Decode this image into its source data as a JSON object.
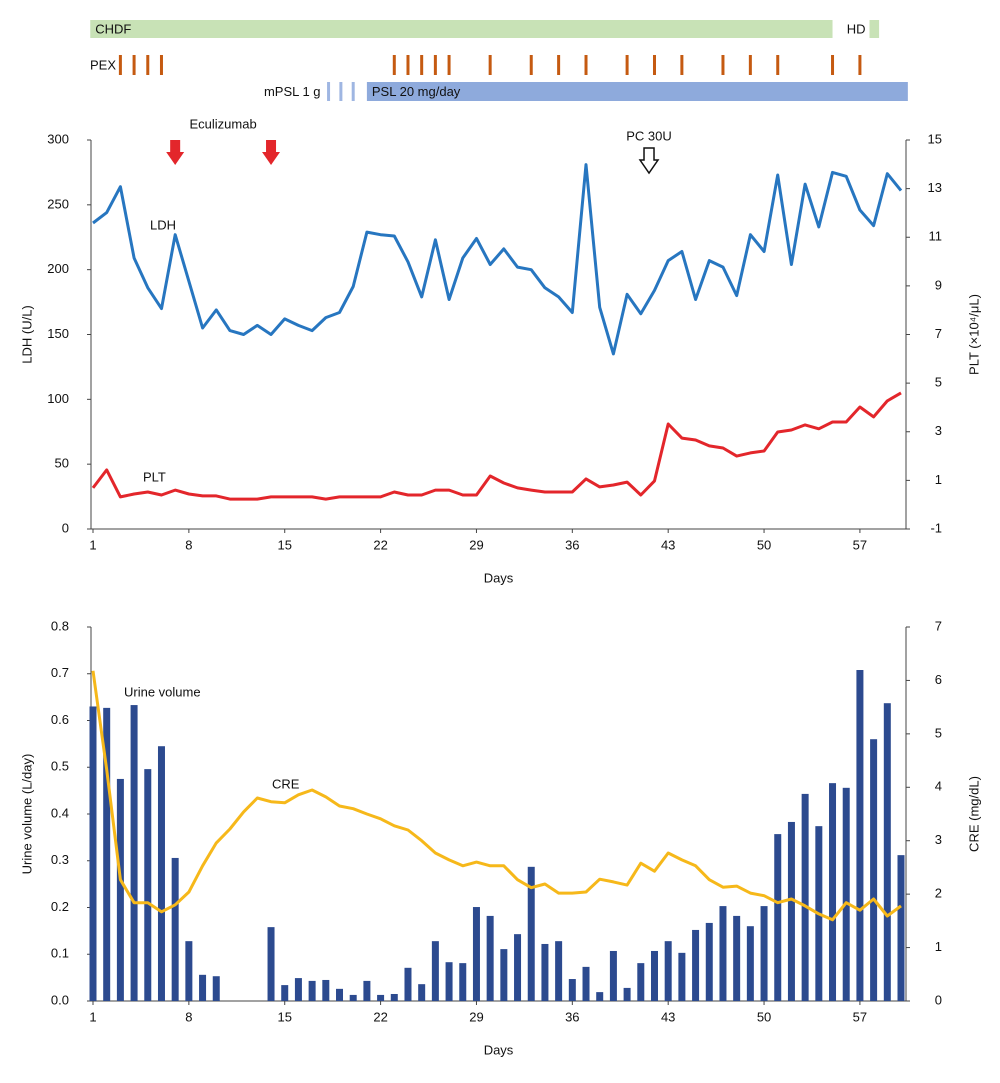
{
  "chart_data": [
    {
      "type": "timeline",
      "rows": [
        {
          "name": "CHDF",
          "spans": [
            [
              0.8,
              55
            ]
          ],
          "color": "#c8e2b6"
        },
        {
          "name": "HD",
          "spans": [
            [
              57.7,
              58.4
            ]
          ],
          "color": "#c8e2b6"
        },
        {
          "name": "PEX",
          "days": [
            3,
            4,
            5,
            6,
            23,
            24,
            25,
            26,
            27,
            30,
            33,
            35,
            37,
            40,
            42,
            44,
            47,
            49,
            51,
            55,
            57
          ],
          "color": "#c55a11"
        },
        {
          "name": "mPSL 1 g",
          "days": [
            18.2,
            19.1,
            20
          ],
          "color": "#9fb6e2"
        },
        {
          "name": "PSL 20 mg/day",
          "spans": [
            [
              21,
              60.5
            ]
          ],
          "color": "#8eaadc"
        }
      ]
    },
    {
      "type": "line",
      "xlabel": "Days",
      "ylabel": "LDH (U/L)",
      "y2label": "PLT (×10⁴/μL)",
      "x": [
        1,
        2,
        3,
        4,
        5,
        6,
        7,
        8,
        9,
        10,
        11,
        12,
        13,
        14,
        15,
        16,
        17,
        18,
        19,
        20,
        21,
        22,
        23,
        24,
        25,
        26,
        27,
        28,
        29,
        30,
        31,
        32,
        33,
        34,
        35,
        36,
        37,
        38,
        39,
        40,
        41,
        42,
        43,
        44,
        45,
        46,
        47,
        48,
        49,
        50,
        51,
        52,
        53,
        54,
        55,
        56,
        57,
        58,
        59,
        60
      ],
      "xlim": [
        1,
        60
      ],
      "xticks": [
        1,
        8,
        15,
        22,
        29,
        36,
        43,
        50,
        57
      ],
      "ylim": [
        0,
        300
      ],
      "yticks": [
        0,
        50,
        100,
        150,
        200,
        250,
        300
      ],
      "y2lim": [
        -1,
        15
      ],
      "y2ticks": [
        -1,
        1,
        3,
        5,
        7,
        9,
        11,
        13,
        15
      ],
      "series": [
        {
          "name": "LDH",
          "color": "#2776c0",
          "values": [
            236,
            244,
            264,
            209,
            186,
            170,
            227,
            191,
            155,
            169,
            153,
            150,
            157,
            150,
            162,
            157,
            153,
            163,
            167,
            187,
            229,
            227,
            226,
            206,
            179,
            223,
            177,
            209,
            224,
            204,
            216,
            202,
            200,
            186,
            179,
            167,
            281,
            171,
            135,
            181,
            166,
            184,
            207,
            214,
            177,
            207,
            202,
            180,
            227,
            214,
            273,
            204,
            266,
            233,
            275,
            272,
            246,
            234,
            274,
            261
          ]
        },
        {
          "name": "PLT",
          "color": "#e3262b",
          "axis": "y2",
          "values": [
            0.69,
            1.43,
            0.32,
            0.44,
            0.52,
            0.4,
            0.6,
            0.44,
            0.36,
            0.36,
            0.23,
            0.23,
            0.23,
            0.32,
            0.32,
            0.32,
            0.32,
            0.23,
            0.32,
            0.32,
            0.32,
            0.32,
            0.52,
            0.4,
            0.4,
            0.6,
            0.6,
            0.4,
            0.4,
            1.18,
            0.89,
            0.69,
            0.6,
            0.52,
            0.52,
            0.52,
            1.06,
            0.73,
            0.81,
            0.93,
            0.4,
            0.98,
            3.32,
            2.74,
            2.66,
            2.42,
            2.33,
            2.0,
            2.13,
            2.21,
            2.99,
            3.07,
            3.28,
            3.12,
            3.4,
            3.4,
            4.02,
            3.61,
            4.27,
            4.6
          ]
        }
      ],
      "annotations": [
        {
          "text": "Eculizumab",
          "days": [
            7,
            14
          ]
        },
        {
          "text": "PC 30U",
          "days": [
            41.6
          ]
        }
      ]
    },
    {
      "type": "combo",
      "xlabel": "Days",
      "ylabel": "Urine volume (L/day)",
      "y2label": "CRE (mg/dL)",
      "x": [
        1,
        2,
        3,
        4,
        5,
        6,
        7,
        8,
        9,
        10,
        11,
        12,
        13,
        14,
        15,
        16,
        17,
        18,
        19,
        20,
        21,
        22,
        23,
        24,
        25,
        26,
        27,
        28,
        29,
        30,
        31,
        32,
        33,
        34,
        35,
        36,
        37,
        38,
        39,
        40,
        41,
        42,
        43,
        44,
        45,
        46,
        47,
        48,
        49,
        50,
        51,
        52,
        53,
        54,
        55,
        56,
        57,
        58,
        59,
        60
      ],
      "xlim": [
        1,
        60
      ],
      "xticks": [
        1,
        8,
        15,
        22,
        29,
        36,
        43,
        50,
        57
      ],
      "ylim": [
        0,
        0.8
      ],
      "yticks": [
        {
          "value": 0,
          "label": "0.0"
        },
        0.1,
        0.2,
        0.3,
        0.4,
        0.5,
        0.6,
        0.7,
        0.8
      ],
      "y2lim": [
        0,
        7
      ],
      "y2ticks": [
        0,
        1,
        2,
        3,
        4,
        5,
        6,
        7
      ],
      "series": [
        {
          "name": "Urine volume",
          "type": "bar",
          "color": "#2c4a8f",
          "values": [
            0.63,
            0.627,
            0.475,
            0.633,
            0.496,
            0.545,
            0.306,
            0.128,
            0.056,
            0.053,
            null,
            null,
            null,
            0.158,
            0.034,
            0.049,
            0.043,
            0.045,
            0.026,
            0.013,
            0.043,
            0.013,
            0.015,
            0.071,
            0.036,
            0.128,
            0.083,
            0.081,
            0.201,
            0.182,
            0.111,
            0.143,
            0.287,
            0.122,
            0.128,
            0.047,
            0.073,
            0.019,
            0.107,
            0.028,
            0.081,
            0.107,
            0.128,
            0.103,
            0.152,
            0.167,
            0.203,
            0.182,
            0.16,
            0.203,
            0.357,
            0.383,
            0.443,
            0.374,
            0.466,
            0.456,
            0.708,
            0.56,
            0.637,
            0.312
          ]
        },
        {
          "name": "CRE",
          "type": "line",
          "color": "#f6b81a",
          "axis": "y2",
          "values": [
            6.18,
            4.33,
            2.27,
            1.84,
            1.84,
            1.67,
            1.8,
            2.04,
            2.53,
            2.96,
            3.22,
            3.54,
            3.8,
            3.73,
            3.71,
            3.86,
            3.95,
            3.82,
            3.65,
            3.6,
            3.5,
            3.41,
            3.28,
            3.2,
            3.0,
            2.77,
            2.64,
            2.53,
            2.6,
            2.53,
            2.53,
            2.27,
            2.12,
            2.19,
            2.02,
            2.02,
            2.04,
            2.28,
            2.23,
            2.17,
            2.58,
            2.43,
            2.77,
            2.64,
            2.53,
            2.27,
            2.13,
            2.15,
            2.02,
            1.97,
            1.84,
            1.91,
            1.78,
            1.63,
            1.52,
            1.84,
            1.7,
            1.91,
            1.59,
            1.78
          ]
        }
      ]
    }
  ]
}
